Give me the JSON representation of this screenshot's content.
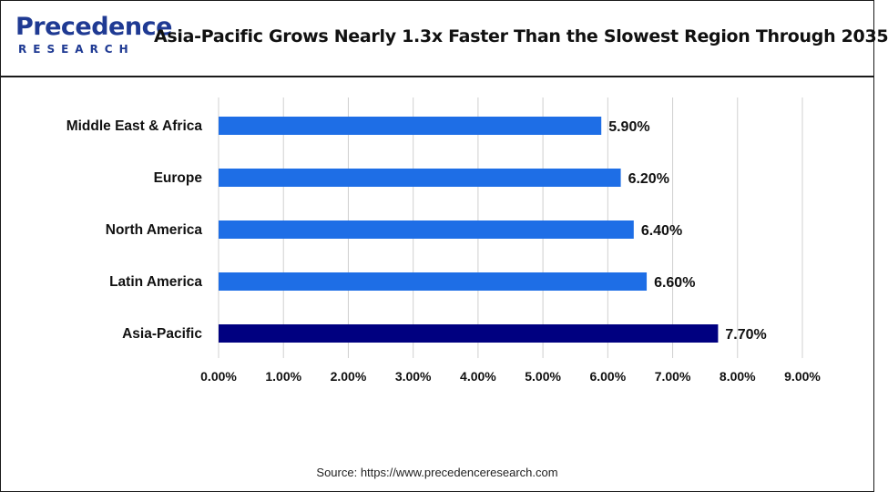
{
  "header": {
    "logo_main": "Precedence",
    "logo_sub": "RESEARCH",
    "title": "Asia-Pacific Grows Nearly 1.3x Faster Than the Slowest Region Through 2035"
  },
  "footer": {
    "source": "Source: https://www.precedenceresearch.com"
  },
  "colors": {
    "bar": "#1e6ee6",
    "bar_highlight": "#000080",
    "grid": "#d0d0d0"
  },
  "chart_data": {
    "type": "bar",
    "orientation": "horizontal",
    "title": "",
    "xlabel": "",
    "ylabel": "",
    "xlim": [
      0,
      9
    ],
    "grid": true,
    "ticks": [
      "0.00%",
      "1.00%",
      "2.00%",
      "3.00%",
      "4.00%",
      "5.00%",
      "6.00%",
      "7.00%",
      "8.00%",
      "9.00%"
    ],
    "categories": [
      "Middle East & Africa",
      "Europe",
      "North America",
      "Latin America",
      "Asia-Pacific"
    ],
    "values": [
      5.9,
      6.2,
      6.4,
      6.6,
      7.7
    ],
    "value_labels": [
      "5.90%",
      "6.20%",
      "6.40%",
      "6.60%",
      "7.70%"
    ],
    "highlight": "Asia-Pacific"
  }
}
